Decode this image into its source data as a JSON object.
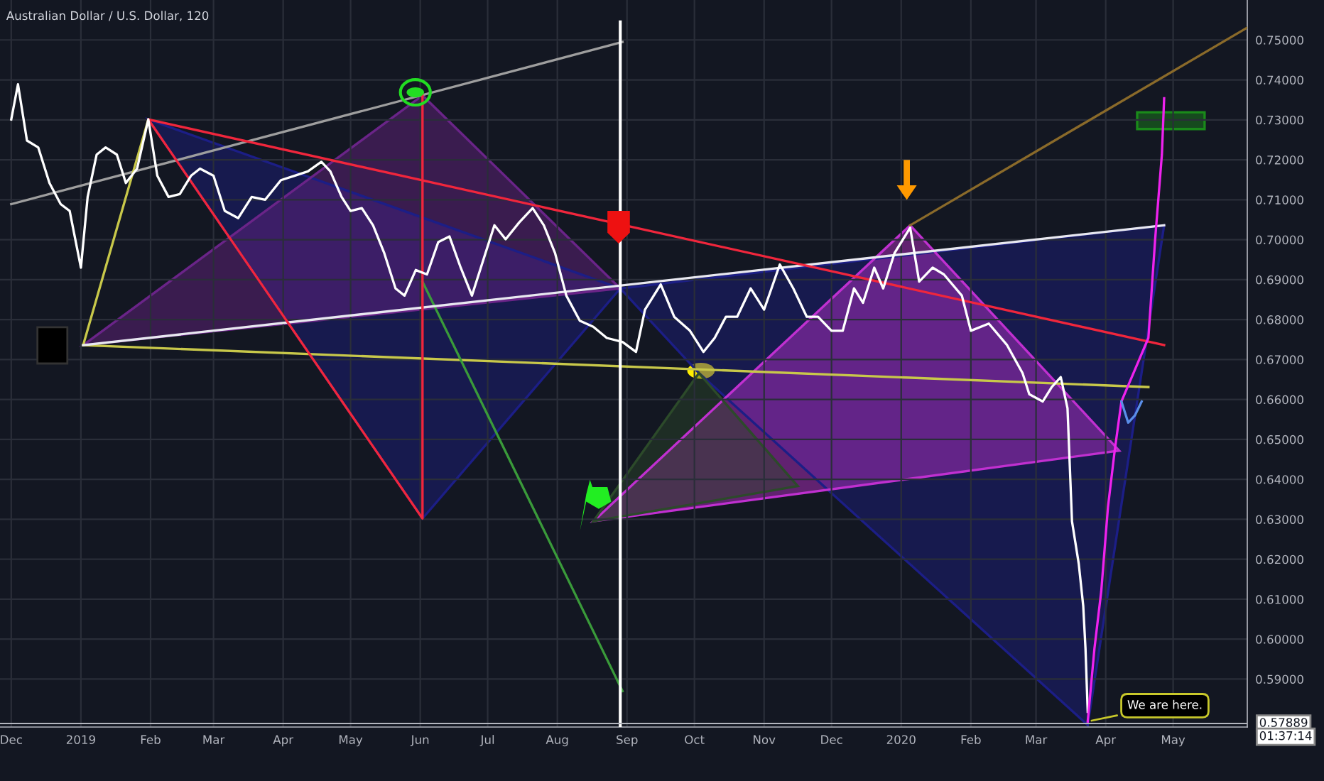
{
  "chart_data": {
    "type": "line",
    "title": "Australian Dollar / U.S. Dollar, 120",
    "xlim": [
      "2018-11-26",
      "2020-06-03"
    ],
    "xticks": [
      {
        "value": "2018-12-01",
        "label": "Dec"
      },
      {
        "value": "2019-01-01",
        "label": "2019"
      },
      {
        "value": "2019-02-01",
        "label": "Feb"
      },
      {
        "value": "2019-03-01",
        "label": "Mar"
      },
      {
        "value": "2019-04-01",
        "label": "Apr"
      },
      {
        "value": "2019-05-01",
        "label": "May"
      },
      {
        "value": "2019-06-01",
        "label": "Jun"
      },
      {
        "value": "2019-07-01",
        "label": "Jul"
      },
      {
        "value": "2019-08-01",
        "label": "Aug"
      },
      {
        "value": "2019-09-01",
        "label": "Sep"
      },
      {
        "value": "2019-10-01",
        "label": "Oct"
      },
      {
        "value": "2019-11-01",
        "label": "Nov"
      },
      {
        "value": "2019-12-01",
        "label": "Dec"
      },
      {
        "value": "2020-01-01",
        "label": "2020"
      },
      {
        "value": "2020-02-01",
        "label": "Feb"
      },
      {
        "value": "2020-03-01",
        "label": "Mar"
      },
      {
        "value": "2020-04-01",
        "label": "Apr"
      },
      {
        "value": "2020-05-01",
        "label": "May"
      }
    ],
    "ylim": [
      0.578,
      0.76
    ],
    "yticks": [
      {
        "value": 0.59,
        "label": "0.59000"
      },
      {
        "value": 0.6,
        "label": "0.60000"
      },
      {
        "value": 0.61,
        "label": "0.61000"
      },
      {
        "value": 0.62,
        "label": "0.62000"
      },
      {
        "value": 0.63,
        "label": "0.63000"
      },
      {
        "value": 0.64,
        "label": "0.64000"
      },
      {
        "value": 0.65,
        "label": "0.65000"
      },
      {
        "value": 0.66,
        "label": "0.66000"
      },
      {
        "value": 0.67,
        "label": "0.67000"
      },
      {
        "value": 0.68,
        "label": "0.68000"
      },
      {
        "value": 0.69,
        "label": "0.69000"
      },
      {
        "value": 0.7,
        "label": "0.70000"
      },
      {
        "value": 0.71,
        "label": "0.71000"
      },
      {
        "value": 0.72,
        "label": "0.72000"
      },
      {
        "value": 0.73,
        "label": "0.73000"
      },
      {
        "value": 0.74,
        "label": "0.74000"
      },
      {
        "value": 0.75,
        "label": "0.75000"
      }
    ],
    "grid": true,
    "series": [
      {
        "type": "area",
        "color": "#1c1e86",
        "x": [
          "2019-01-31",
          "2019-06-02",
          "2019-08-29"
        ],
        "values": [
          0.7301,
          0.6302,
          0.6878
        ]
      },
      {
        "type": "area",
        "color": "#6a2488",
        "x": [
          "2019-01-02",
          "2019-06-02",
          "2019-08-29"
        ],
        "values": [
          0.6736,
          0.7361,
          0.6878
        ]
      },
      {
        "type": "area",
        "color": "#1c1e86",
        "x": [
          "2019-08-29",
          "2020-04-27",
          "2020-03-24",
          "2019-10-03"
        ],
        "values": [
          0.6878,
          0.7036,
          0.5785,
          0.6666
        ]
      },
      {
        "type": "area",
        "color": "#c030d0",
        "x": [
          "2019-08-17",
          "2020-01-05",
          "2020-04-07"
        ],
        "values": [
          0.6295,
          0.7036,
          0.6472
        ]
      },
      {
        "type": "area",
        "color": "#2c4a2a",
        "x": [
          "2019-08-17",
          "2019-10-03",
          "2019-11-16"
        ],
        "values": [
          0.6295,
          0.6666,
          0.6383
        ]
      },
      {
        "type": "area",
        "color": "#1a8a1a",
        "x": [
          "2020-04-15",
          "2020-05-15",
          "2020-05-15",
          "2020-04-15"
        ],
        "values": [
          0.7277,
          0.7277,
          0.7319,
          0.7319
        ]
      },
      {
        "type": "line",
        "color": "#9e9e9e",
        "x": [
          "2018-12-01",
          "2019-08-30"
        ],
        "values": [
          0.7089,
          0.7495
        ]
      },
      {
        "type": "line",
        "color": "#8a6a2a",
        "x": [
          "2020-01-05",
          "2020-06-03"
        ],
        "values": [
          0.7036,
          0.7531
        ]
      },
      {
        "type": "line",
        "color": "#c8c84a",
        "x": [
          "2019-01-02",
          "2019-01-31"
        ],
        "values": [
          0.6736,
          0.7301
        ]
      },
      {
        "type": "line",
        "color": "#c8c84a",
        "x": [
          "2019-01-02",
          "2020-04-20"
        ],
        "values": [
          0.6736,
          0.6631
        ]
      },
      {
        "type": "line",
        "color": "#3a9a3a",
        "x": [
          "2019-06-02",
          "2019-08-30"
        ],
        "values": [
          0.6895,
          0.587
        ]
      },
      {
        "type": "line",
        "color": "#e8e8f0",
        "x": [
          "2019-01-02",
          "2020-04-27"
        ],
        "values": [
          0.6736,
          0.7036
        ]
      },
      {
        "type": "line",
        "color": "#f0263c",
        "x": [
          "2019-06-02",
          "2019-06-02",
          "2019-01-31",
          "2020-04-27"
        ],
        "values": [
          0.7361,
          0.6302,
          0.7301,
          0.6736
        ]
      },
      {
        "color": "#ffffff",
        "x": [
          "2018-12-01",
          "2018-12-04",
          "2018-12-08",
          "2018-12-13",
          "2018-12-18",
          "2018-12-23",
          "2018-12-27",
          "2019-01-01",
          "2019-01-04",
          "2019-01-08",
          "2019-01-12",
          "2019-01-17",
          "2019-01-21",
          "2019-01-26",
          "2019-01-31",
          "2019-02-04",
          "2019-02-09",
          "2019-02-14",
          "2019-02-19",
          "2019-02-23",
          "2019-03-01",
          "2019-03-06",
          "2019-03-12",
          "2019-03-18",
          "2019-03-24",
          "2019-03-31",
          "2019-04-06",
          "2019-04-12",
          "2019-04-18",
          "2019-04-22",
          "2019-04-27",
          "2019-05-01",
          "2019-05-06",
          "2019-05-11",
          "2019-05-16",
          "2019-05-21",
          "2019-05-25",
          "2019-05-30",
          "2019-06-04",
          "2019-06-09",
          "2019-06-14",
          "2019-06-19",
          "2019-06-24",
          "2019-06-30",
          "2019-07-04",
          "2019-07-09",
          "2019-07-15",
          "2019-07-21",
          "2019-07-26",
          "2019-07-31",
          "2019-08-05",
          "2019-08-11",
          "2019-08-17",
          "2019-08-23",
          "2019-08-30",
          "2019-09-05",
          "2019-09-09",
          "2019-09-16",
          "2019-09-22",
          "2019-09-29",
          "2019-10-05",
          "2019-10-10",
          "2019-10-15",
          "2019-10-20",
          "2019-10-26",
          "2019-11-01",
          "2019-11-08",
          "2019-11-14",
          "2019-11-20",
          "2019-11-25",
          "2019-12-01",
          "2019-12-06",
          "2019-12-11",
          "2019-12-15",
          "2019-12-20",
          "2019-12-24",
          "2019-12-29",
          "2020-01-05",
          "2020-01-09",
          "2020-01-15",
          "2020-01-20",
          "2020-01-28",
          "2020-02-01",
          "2020-02-09",
          "2020-02-17",
          "2020-02-24",
          "2020-02-27",
          "2020-03-04",
          "2020-03-08",
          "2020-03-12",
          "2020-03-15",
          "2020-03-17",
          "2020-03-20",
          "2020-03-22",
          "2020-03-23",
          "2020-03-24"
        ],
        "values": [
          0.7301,
          0.7389,
          0.7248,
          0.7231,
          0.7142,
          0.7089,
          0.7072,
          0.693,
          0.7107,
          0.7213,
          0.7231,
          0.7213,
          0.7142,
          0.7178,
          0.7301,
          0.716,
          0.7107,
          0.7114,
          0.716,
          0.7178,
          0.716,
          0.7072,
          0.7054,
          0.7107,
          0.71,
          0.7149,
          0.716,
          0.7171,
          0.7195,
          0.7171,
          0.7107,
          0.7072,
          0.7079,
          0.7036,
          0.6966,
          0.6878,
          0.686,
          0.6924,
          0.6913,
          0.6994,
          0.7008,
          0.693,
          0.686,
          0.6966,
          0.7036,
          0.7001,
          0.7043,
          0.7079,
          0.7036,
          0.6966,
          0.686,
          0.6797,
          0.6782,
          0.6754,
          0.6744,
          0.6719,
          0.6825,
          0.6888,
          0.6807,
          0.6772,
          0.6719,
          0.6754,
          0.6807,
          0.6807,
          0.6878,
          0.6825,
          0.6938,
          0.6878,
          0.6807,
          0.6807,
          0.6772,
          0.6772,
          0.6878,
          0.6842,
          0.693,
          0.6878,
          0.6966,
          0.703,
          0.6895,
          0.693,
          0.6913,
          0.686,
          0.6772,
          0.679,
          0.6737,
          0.6666,
          0.6613,
          0.6595,
          0.6631,
          0.6656,
          0.6578,
          0.6295,
          0.6189,
          0.6083,
          0.5977,
          0.5818
        ]
      },
      {
        "color": "#ee22ee",
        "x": [
          "2020-03-24",
          "2020-03-27",
          "2020-03-30",
          "2020-04-02",
          "2020-04-05",
          "2020-04-08",
          "2020-04-20",
          "2020-04-23",
          "2020-04-26",
          "2020-04-27"
        ],
        "values": [
          0.5794,
          0.5977,
          0.6119,
          0.633,
          0.6472,
          0.6595,
          0.6754,
          0.7001,
          0.7213,
          0.7354
        ]
      },
      {
        "color": "#5a8ee8",
        "x": [
          "2020-04-08",
          "2020-04-11",
          "2020-04-14",
          "2020-04-17"
        ],
        "values": [
          0.6595,
          0.6542,
          0.656,
          0.6595
        ]
      }
    ],
    "ref_lines": [
      {
        "axis": "x",
        "value": "2019-08-29",
        "color": "#ffffff"
      },
      {
        "axis": "y",
        "value": 0.57889,
        "label": "0.57889",
        "color": "#b2b5be"
      }
    ],
    "annotations": [
      {
        "text": "We are here.",
        "x": "2020-03-24",
        "y": 0.5794
      },
      "01:37:14"
    ]
  }
}
